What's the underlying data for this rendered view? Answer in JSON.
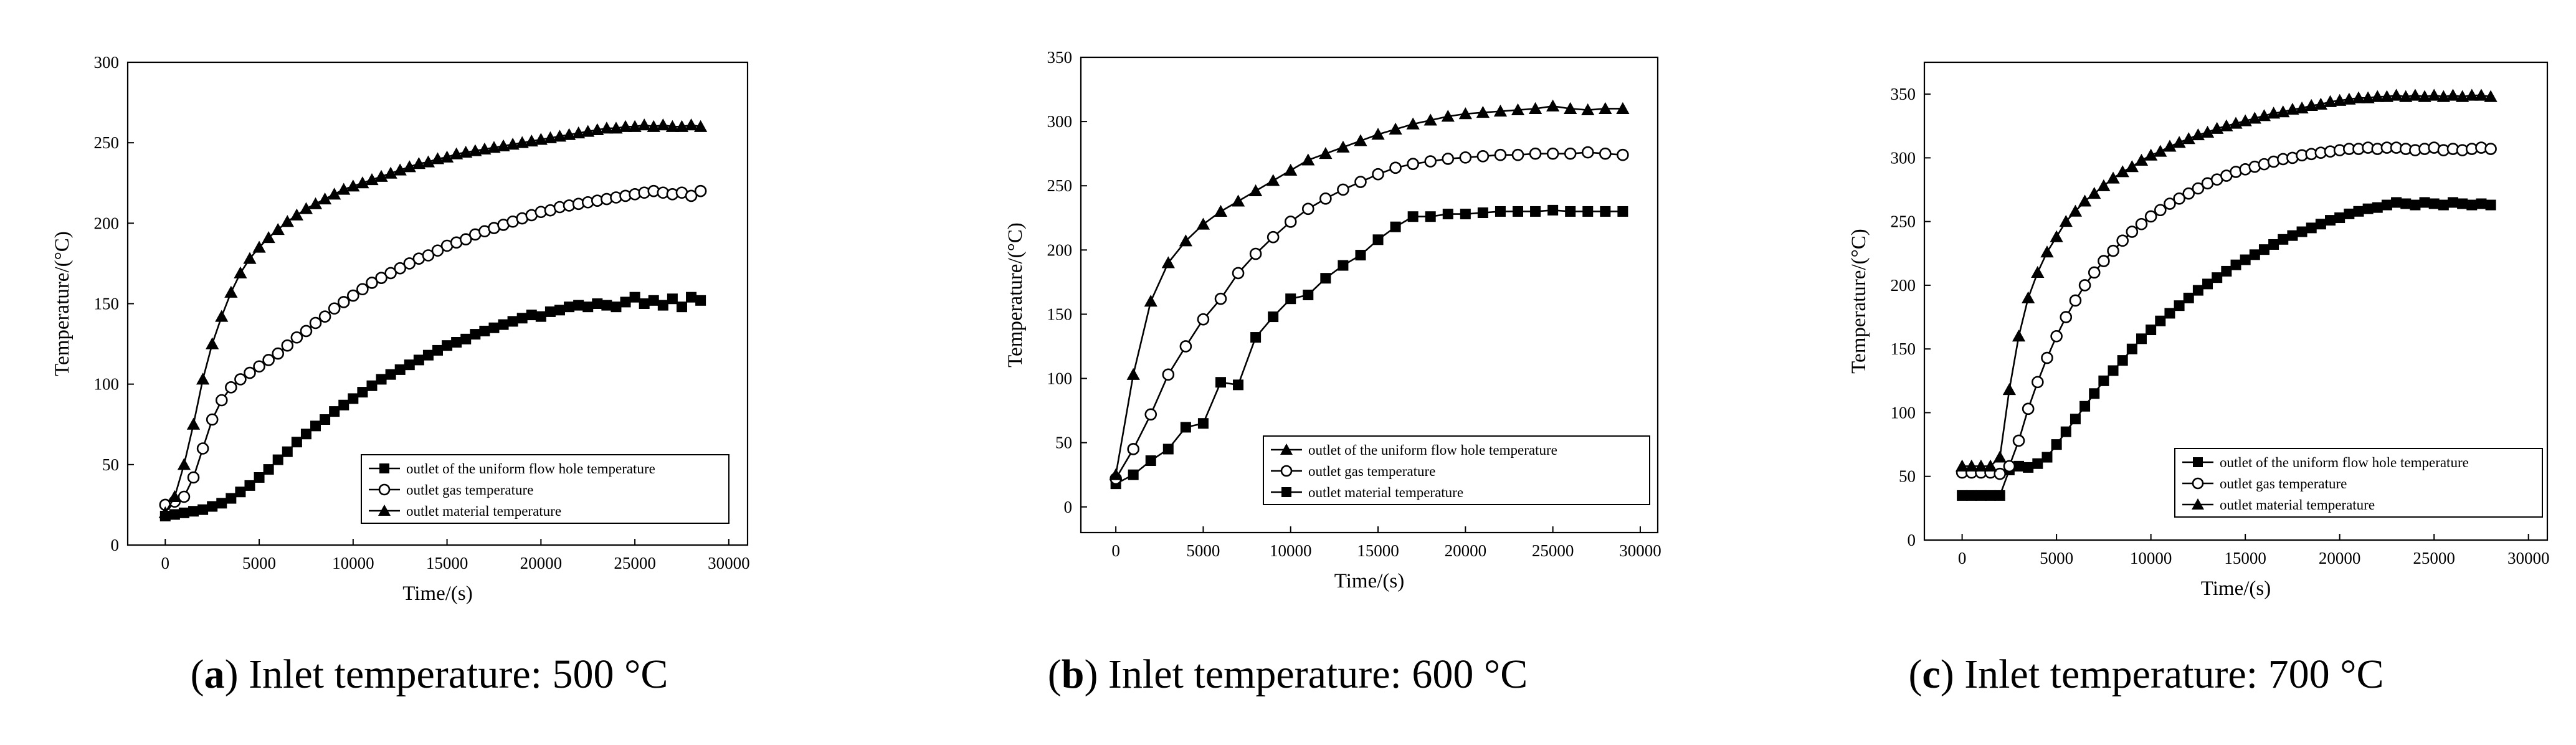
{
  "chart_data": [
    {
      "type": "line",
      "letter": "a",
      "caption": "Inlet temperature: 500 °C",
      "xlabel": "Time/(s)",
      "ylabel": "Temperature/(°C)",
      "xlim": [
        -2000,
        31000
      ],
      "ylim": [
        0,
        300
      ],
      "xticks": [
        0,
        5000,
        10000,
        15000,
        20000,
        25000,
        30000
      ],
      "yticks": [
        0,
        50,
        100,
        150,
        200,
        250,
        300
      ],
      "legend_position": "bottom-right",
      "legend_order": [
        0,
        1,
        2
      ],
      "series": [
        {
          "name": "outlet of the uniform flow hole temperature",
          "marker": "square-filled",
          "x": [
            0,
            500,
            1000,
            1500,
            2000,
            2500,
            3000,
            3500,
            4000,
            4500,
            5000,
            5500,
            6000,
            6500,
            7000,
            7500,
            8000,
            8500,
            9000,
            9500,
            10000,
            10500,
            11000,
            11500,
            12000,
            12500,
            13000,
            13500,
            14000,
            14500,
            15000,
            15500,
            16000,
            16500,
            17000,
            17500,
            18000,
            18500,
            19000,
            19500,
            20000,
            20500,
            21000,
            21500,
            22000,
            22500,
            23000,
            23500,
            24000,
            24500,
            25000,
            25500,
            26000,
            26500,
            27000,
            27500,
            28000,
            28500
          ],
          "y": [
            18,
            19,
            20,
            21,
            22,
            24,
            26,
            29,
            33,
            37,
            42,
            47,
            53,
            58,
            64,
            69,
            74,
            78,
            83,
            87,
            91,
            95,
            99,
            103,
            106,
            109,
            112,
            115,
            118,
            121,
            124,
            126,
            128,
            131,
            133,
            135,
            137,
            139,
            141,
            143,
            142,
            145,
            146,
            148,
            149,
            148,
            150,
            149,
            148,
            151,
            154,
            150,
            152,
            149,
            153,
            148,
            154,
            152
          ]
        },
        {
          "name": "outlet gas temperature",
          "marker": "circle-open",
          "x": [
            0,
            500,
            1000,
            1500,
            2000,
            2500,
            3000,
            3500,
            4000,
            4500,
            5000,
            5500,
            6000,
            6500,
            7000,
            7500,
            8000,
            8500,
            9000,
            9500,
            10000,
            10500,
            11000,
            11500,
            12000,
            12500,
            13000,
            13500,
            14000,
            14500,
            15000,
            15500,
            16000,
            16500,
            17000,
            17500,
            18000,
            18500,
            19000,
            19500,
            20000,
            20500,
            21000,
            21500,
            22000,
            22500,
            23000,
            23500,
            24000,
            24500,
            25000,
            25500,
            26000,
            26500,
            27000,
            27500,
            28000,
            28500
          ],
          "y": [
            25,
            27,
            30,
            42,
            60,
            78,
            90,
            98,
            103,
            107,
            111,
            115,
            119,
            124,
            129,
            133,
            138,
            142,
            147,
            151,
            155,
            159,
            163,
            166,
            169,
            172,
            175,
            178,
            180,
            183,
            186,
            188,
            190,
            193,
            195,
            197,
            199,
            201,
            203,
            205,
            207,
            208,
            210,
            211,
            212,
            213,
            214,
            215,
            216,
            217,
            218,
            219,
            220,
            219,
            218,
            219,
            217,
            220
          ]
        },
        {
          "name": "outlet material temperature",
          "marker": "triangle-filled",
          "x": [
            0,
            500,
            1000,
            1500,
            2000,
            2500,
            3000,
            3500,
            4000,
            4500,
            5000,
            5500,
            6000,
            6500,
            7000,
            7500,
            8000,
            8500,
            9000,
            9500,
            10000,
            10500,
            11000,
            11500,
            12000,
            12500,
            13000,
            13500,
            14000,
            14500,
            15000,
            15500,
            16000,
            16500,
            17000,
            17500,
            18000,
            18500,
            19000,
            19500,
            20000,
            20500,
            21000,
            21500,
            22000,
            22500,
            23000,
            23500,
            24000,
            24500,
            25000,
            25500,
            26000,
            26500,
            27000,
            27500,
            28000,
            28500
          ],
          "y": [
            20,
            30,
            50,
            75,
            103,
            125,
            142,
            157,
            169,
            178,
            185,
            191,
            196,
            201,
            205,
            209,
            212,
            215,
            218,
            221,
            223,
            225,
            227,
            229,
            231,
            233,
            235,
            237,
            238,
            240,
            241,
            243,
            244,
            245,
            246,
            247,
            248,
            249,
            250,
            251,
            252,
            253,
            254,
            255,
            256,
            257,
            258,
            259,
            259,
            260,
            260,
            261,
            260,
            261,
            260,
            260,
            261,
            260
          ]
        }
      ]
    },
    {
      "type": "line",
      "letter": "b",
      "caption": "Inlet temperature: 600 °C",
      "xlabel": "Time/(s)",
      "ylabel": "Temperature/(°C)",
      "xlim": [
        -2000,
        31000
      ],
      "ylim": [
        -20,
        350
      ],
      "xticks": [
        0,
        5000,
        10000,
        15000,
        20000,
        25000,
        30000
      ],
      "yticks": [
        0,
        50,
        100,
        150,
        200,
        250,
        300,
        350
      ],
      "legend_position": "bottom-right",
      "legend_order": [
        2,
        1,
        0
      ],
      "series": [
        {
          "name": "outlet material temperature",
          "marker": "square-filled",
          "x": [
            0,
            1000,
            2000,
            3000,
            4000,
            5000,
            6000,
            7000,
            8000,
            9000,
            10000,
            11000,
            12000,
            13000,
            14000,
            15000,
            16000,
            17000,
            18000,
            19000,
            20000,
            21000,
            22000,
            23000,
            24000,
            25000,
            26000,
            27000,
            28000,
            29000
          ],
          "y": [
            18,
            25,
            36,
            45,
            62,
            65,
            97,
            95,
            132,
            148,
            162,
            165,
            178,
            188,
            196,
            208,
            218,
            226,
            226,
            228,
            228,
            229,
            230,
            230,
            230,
            231,
            230,
            230,
            230,
            230
          ]
        },
        {
          "name": "outlet gas temperature",
          "marker": "circle-open",
          "x": [
            0,
            1000,
            2000,
            3000,
            4000,
            5000,
            6000,
            7000,
            8000,
            9000,
            10000,
            11000,
            12000,
            13000,
            14000,
            15000,
            16000,
            17000,
            18000,
            19000,
            20000,
            21000,
            22000,
            23000,
            24000,
            25000,
            26000,
            27000,
            28000,
            29000
          ],
          "y": [
            22,
            45,
            72,
            103,
            125,
            146,
            162,
            182,
            197,
            210,
            222,
            232,
            240,
            247,
            253,
            259,
            264,
            267,
            269,
            271,
            272,
            273,
            274,
            274,
            275,
            275,
            275,
            276,
            275,
            274
          ]
        },
        {
          "name": "outlet of the uniform flow hole temperature",
          "marker": "triangle-filled",
          "x": [
            0,
            1000,
            2000,
            3000,
            4000,
            5000,
            6000,
            7000,
            8000,
            9000,
            10000,
            11000,
            12000,
            13000,
            14000,
            15000,
            16000,
            17000,
            18000,
            19000,
            20000,
            21000,
            22000,
            23000,
            24000,
            25000,
            26000,
            27000,
            28000,
            29000
          ],
          "y": [
            25,
            103,
            160,
            190,
            207,
            220,
            230,
            238,
            246,
            254,
            262,
            270,
            275,
            280,
            285,
            290,
            294,
            298,
            301,
            304,
            306,
            307,
            308,
            309,
            310,
            312,
            310,
            309,
            310,
            310
          ]
        }
      ]
    },
    {
      "type": "line",
      "letter": "c",
      "caption": "Inlet temperature: 700 °C",
      "xlabel": "Time/(s)",
      "ylabel": "Temperature/(°C)",
      "xlim": [
        -2000,
        31000
      ],
      "ylim": [
        0,
        375
      ],
      "xticks": [
        0,
        5000,
        10000,
        15000,
        20000,
        25000,
        30000
      ],
      "yticks": [
        0,
        50,
        100,
        150,
        200,
        250,
        300,
        350
      ],
      "legend_position": "bottom-right",
      "legend_order": [
        0,
        1,
        2
      ],
      "series": [
        {
          "name": "outlet of the uniform flow hole temperature",
          "marker": "square-filled",
          "x": [
            0,
            500,
            1000,
            1500,
            2000,
            2500,
            3000,
            3500,
            4000,
            4500,
            5000,
            5500,
            6000,
            6500,
            7000,
            7500,
            8000,
            8500,
            9000,
            9500,
            10000,
            10500,
            11000,
            11500,
            12000,
            12500,
            13000,
            13500,
            14000,
            14500,
            15000,
            15500,
            16000,
            16500,
            17000,
            17500,
            18000,
            18500,
            19000,
            19500,
            20000,
            20500,
            21000,
            21500,
            22000,
            22500,
            23000,
            23500,
            24000,
            24500,
            25000,
            25500,
            26000,
            26500,
            27000,
            27500,
            28000
          ],
          "y": [
            35,
            35,
            35,
            35,
            35,
            55,
            58,
            57,
            60,
            65,
            75,
            85,
            95,
            105,
            115,
            125,
            133,
            141,
            150,
            158,
            165,
            172,
            178,
            184,
            190,
            196,
            201,
            206,
            211,
            216,
            220,
            224,
            228,
            232,
            236,
            239,
            242,
            245,
            248,
            251,
            253,
            256,
            258,
            260,
            261,
            263,
            265,
            264,
            263,
            265,
            264,
            263,
            265,
            264,
            263,
            264,
            263
          ]
        },
        {
          "name": "outlet gas temperature",
          "marker": "circle-open",
          "x": [
            0,
            500,
            1000,
            1500,
            2000,
            2500,
            3000,
            3500,
            4000,
            4500,
            5000,
            5500,
            6000,
            6500,
            7000,
            7500,
            8000,
            8500,
            9000,
            9500,
            10000,
            10500,
            11000,
            11500,
            12000,
            12500,
            13000,
            13500,
            14000,
            14500,
            15000,
            15500,
            16000,
            16500,
            17000,
            17500,
            18000,
            18500,
            19000,
            19500,
            20000,
            20500,
            21000,
            21500,
            22000,
            22500,
            23000,
            23500,
            24000,
            24500,
            25000,
            25500,
            26000,
            26500,
            27000,
            27500,
            28000
          ],
          "y": [
            53,
            53,
            53,
            53,
            52,
            58,
            78,
            103,
            124,
            143,
            160,
            175,
            188,
            200,
            210,
            219,
            227,
            235,
            242,
            248,
            254,
            259,
            264,
            268,
            272,
            276,
            280,
            283,
            286,
            289,
            291,
            293,
            295,
            297,
            299,
            300,
            302,
            303,
            304,
            305,
            306,
            307,
            307,
            308,
            307,
            308,
            308,
            307,
            306,
            307,
            308,
            306,
            307,
            306,
            307,
            308,
            307
          ]
        },
        {
          "name": "outlet material temperature",
          "marker": "triangle-filled",
          "x": [
            0,
            500,
            1000,
            1500,
            2000,
            2500,
            3000,
            3500,
            4000,
            4500,
            5000,
            5500,
            6000,
            6500,
            7000,
            7500,
            8000,
            8500,
            9000,
            9500,
            10000,
            10500,
            11000,
            11500,
            12000,
            12500,
            13000,
            13500,
            14000,
            14500,
            15000,
            15500,
            16000,
            16500,
            17000,
            17500,
            18000,
            18500,
            19000,
            19500,
            20000,
            20500,
            21000,
            21500,
            22000,
            22500,
            23000,
            23500,
            24000,
            24500,
            25000,
            25500,
            26000,
            26500,
            27000,
            27500,
            28000
          ],
          "y": [
            58,
            58,
            58,
            58,
            65,
            118,
            160,
            190,
            210,
            226,
            238,
            250,
            258,
            266,
            272,
            278,
            284,
            289,
            293,
            298,
            302,
            305,
            309,
            312,
            315,
            318,
            320,
            323,
            325,
            327,
            329,
            331,
            333,
            335,
            336,
            338,
            339,
            341,
            342,
            344,
            345,
            346,
            347,
            347,
            348,
            348,
            349,
            348,
            349,
            348,
            349,
            348,
            349,
            348,
            349,
            349,
            348
          ]
        }
      ]
    }
  ]
}
